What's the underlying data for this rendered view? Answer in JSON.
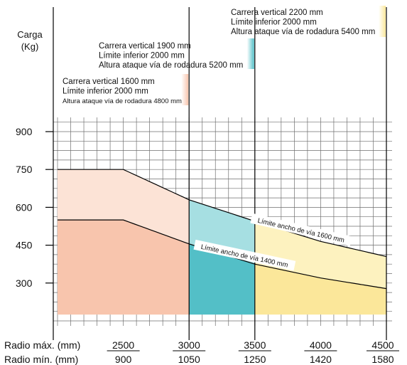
{
  "chart_data": {
    "type": "area",
    "ylabel": [
      "Carga",
      "(Kg)"
    ],
    "ylim": [
      150,
      950
    ],
    "yticks": [
      300,
      450,
      600,
      750,
      900
    ],
    "x_row_labels": [
      "Radio máx. (mm)",
      "Radio mín. (mm)"
    ],
    "x_ticks_max": [
      "2500",
      "3000",
      "3500",
      "4000",
      "4500"
    ],
    "x_ticks_min": [
      "900",
      "1050",
      "1250",
      "1420",
      "1580"
    ],
    "x_max_values": [
      2500,
      3000,
      3500,
      4000,
      4500
    ],
    "xlim": [
      2000,
      4500
    ],
    "grid": true,
    "series": [
      {
        "name": "Límite ancho de vía 1600 mm",
        "x": [
          2000,
          2500,
          3000,
          3500,
          4000,
          4500
        ],
        "y": [
          750,
          750,
          630,
          545,
          465,
          405
        ]
      },
      {
        "name": "Límite ancho de vía 1400 mm",
        "x": [
          2000,
          2500,
          3000,
          3500,
          4000,
          4500
        ],
        "y": [
          550,
          550,
          455,
          375,
          320,
          278
        ]
      }
    ],
    "regions": [
      {
        "x": [
          2000,
          3000
        ],
        "lines": [
          "Carrera vertical 1600 mm",
          "Límite inferior 2000 mm",
          "Altura ataque vía de rodadura 4800 mm"
        ],
        "color_light": "#fce3d6",
        "color_dark": "#f8c5ad"
      },
      {
        "x": [
          3000,
          3500
        ],
        "lines": [
          "Carrera vertical 1900 mm",
          "Límite inferior 2000 mm",
          "Altura ataque vía de rodadura 5200 mm"
        ],
        "color_light": "#a6dfe2",
        "color_dark": "#53bfc7"
      },
      {
        "x": [
          3500,
          4500
        ],
        "lines": [
          "Carrera vertical 2200 mm",
          "Límite inferior 2000 mm",
          "Altura ataque vía de rodadura  5400 mm"
        ],
        "color_light": "#fdf2bf",
        "color_dark": "#fbe79a"
      }
    ]
  }
}
